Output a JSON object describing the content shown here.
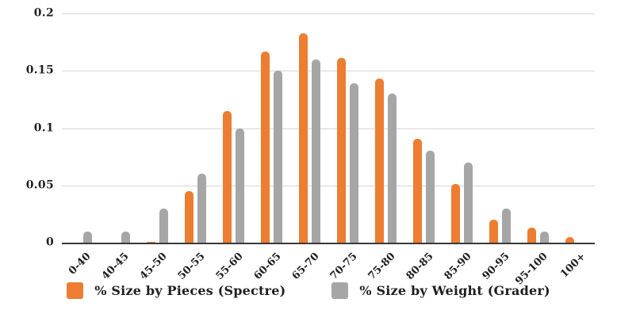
{
  "chart_data": {
    "type": "bar",
    "title": "",
    "categories": [
      "0-40",
      "40-45",
      "45-50",
      "50-55",
      "55-60",
      "60-65",
      "65-70",
      "70-75",
      "75-80",
      "80-85",
      "85-90",
      "90-95",
      "95-100",
      "100+"
    ],
    "series": [
      {
        "name": "% Size by Pieces (Spectre)",
        "color": "#ED7D31",
        "values": [
          0,
          0,
          0.001,
          0.045,
          0.115,
          0.167,
          0.183,
          0.161,
          0.143,
          0.091,
          0.051,
          0.02,
          0.013,
          0.005
        ]
      },
      {
        "name": "% Size by Weight (Grader)",
        "color": "#A6A6A6",
        "values": [
          0.01,
          0.01,
          0.03,
          0.06,
          0.1,
          0.15,
          0.16,
          0.139,
          0.13,
          0.08,
          0.07,
          0.03,
          0.01,
          0
        ]
      }
    ],
    "ylim": [
      0,
      0.2
    ],
    "yticks": [
      0,
      0.05,
      0.1,
      0.15,
      0.2
    ],
    "ytick_labels": [
      "0",
      "0.05",
      "0.1",
      "0.15",
      "0.2"
    ],
    "grid": true,
    "legend_position": "bottom",
    "x_label_rotation_deg": -45
  },
  "colors": {
    "background": "#FFFFFF",
    "gridline": "#D6D6D6",
    "axis_line": "#3A3A3A",
    "text": "#1F1F1F"
  }
}
